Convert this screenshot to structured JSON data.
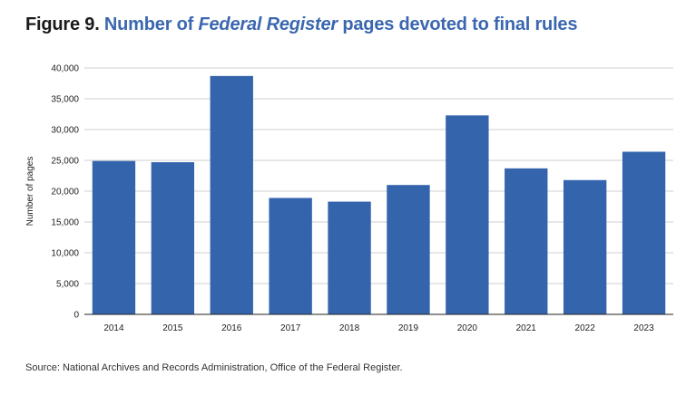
{
  "figure": {
    "label": "Figure 9.",
    "title_pre": "Number of ",
    "title_italic": "Federal Register",
    "title_post": " pages devoted to final rules"
  },
  "source": "Source: National Archives and Records Administration, Office of the Federal Register.",
  "colors": {
    "bar": "#3465ac",
    "grid": "#cfcfcf",
    "axis": "#222222",
    "title_accent": "#3a67b0"
  },
  "chart_data": {
    "type": "bar",
    "title": "Number of Federal Register pages devoted to final rules",
    "xlabel": "",
    "ylabel": "Number of pages",
    "categories": [
      "2014",
      "2015",
      "2016",
      "2017",
      "2018",
      "2019",
      "2020",
      "2021",
      "2022",
      "2023"
    ],
    "values": [
      24900,
      24700,
      38700,
      18900,
      18300,
      21000,
      32300,
      23700,
      21800,
      26400
    ],
    "ylim": [
      0,
      40000
    ],
    "yticks": [
      0,
      5000,
      10000,
      15000,
      20000,
      25000,
      30000,
      35000,
      40000
    ],
    "ytick_labels": [
      "0",
      "5,000",
      "10,000",
      "15,000",
      "20,000",
      "25,000",
      "30,000",
      "35,000",
      "40,000"
    ],
    "grid": true,
    "legend": "none"
  }
}
